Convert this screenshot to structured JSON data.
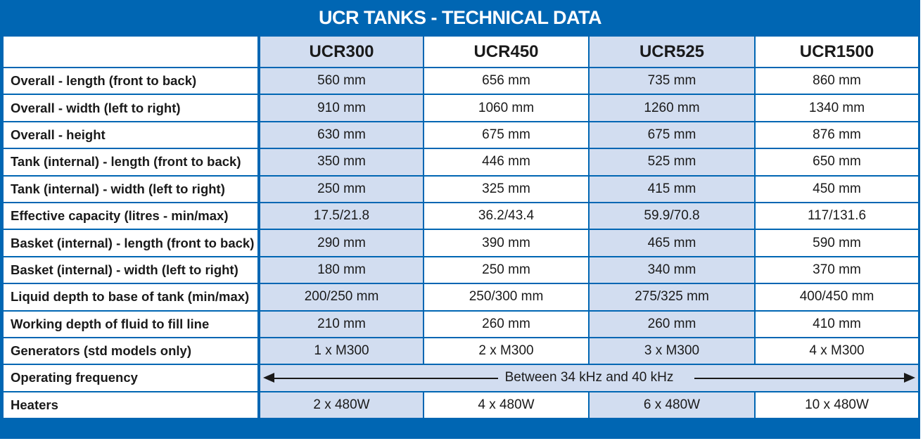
{
  "title": "UCR TANKS - TECHNICAL DATA",
  "columns": [
    "UCR300",
    "UCR450",
    "UCR525",
    "UCR1500"
  ],
  "rows": [
    {
      "label": "Overall - length (front to back)",
      "values": [
        "560 mm",
        "656 mm",
        "735 mm",
        "860 mm"
      ]
    },
    {
      "label": "Overall - width (left to right)",
      "values": [
        "910 mm",
        "1060 mm",
        "1260 mm",
        "1340 mm"
      ]
    },
    {
      "label": "Overall - height",
      "values": [
        "630 mm",
        "675 mm",
        "675 mm",
        "876 mm"
      ]
    },
    {
      "label": "Tank (internal) - length (front to back)",
      "values": [
        "350 mm",
        "446 mm",
        "525 mm",
        "650 mm"
      ]
    },
    {
      "label": "Tank (internal) - width (left to right)",
      "values": [
        "250 mm",
        "325 mm",
        "415 mm",
        "450 mm"
      ]
    },
    {
      "label": "Effective capacity (litres - min/max)",
      "values": [
        "17.5/21.8",
        "36.2/43.4",
        "59.9/70.8",
        "117/131.6"
      ]
    },
    {
      "label": "Basket (internal) - length (front to back)",
      "values": [
        "290 mm",
        "390 mm",
        "465 mm",
        "590 mm"
      ]
    },
    {
      "label": "Basket (internal) - width (left to right)",
      "values": [
        "180 mm",
        "250 mm",
        "340 mm",
        "370 mm"
      ]
    },
    {
      "label": "Liquid depth to base of tank (min/max)",
      "values": [
        "200/250 mm",
        "250/300 mm",
        "275/325 mm",
        "400/450 mm"
      ]
    },
    {
      "label": "Working depth of fluid to fill line",
      "values": [
        "210 mm",
        "260 mm",
        "260 mm",
        "410 mm"
      ]
    },
    {
      "label": "Generators (std models only)",
      "values": [
        "1 x M300",
        "2 x M300",
        "3 x M300",
        "4 x M300"
      ]
    }
  ],
  "frequency": {
    "label": "Operating frequency",
    "value": "Between 34 kHz  and  40 kHz"
  },
  "heaters": {
    "label": "Heaters",
    "values": [
      "2 x 480W",
      "4 x 480W",
      "6 x 480W",
      "10 x 480W"
    ]
  },
  "colors": {
    "brand_blue": "#0066b3",
    "shade": "#d2ddf0"
  }
}
